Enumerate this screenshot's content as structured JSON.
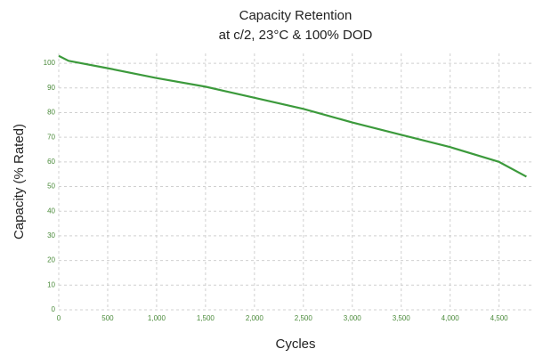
{
  "chart_data": {
    "type": "line",
    "title": "Capacity Retention",
    "subtitle": "at c/2, 23°C & 100% DOD",
    "x_label": "Cycles",
    "y_label": "Capacity (% Rated)",
    "x": [
      0,
      100,
      500,
      1000,
      1500,
      2000,
      2500,
      3000,
      3500,
      4000,
      4500,
      4780
    ],
    "series": [
      {
        "name": "Capacity",
        "color": "#3c9a3c",
        "values": [
          103,
          101,
          98,
          94,
          90.5,
          86,
          81.5,
          76,
          71,
          66,
          60,
          54
        ]
      }
    ],
    "xlim": [
      0,
      4840
    ],
    "ylim": [
      0,
      104
    ],
    "xticks": [
      0,
      500,
      {
        "value": 1000,
        "label": "1,000"
      },
      {
        "value": 1500,
        "label": "1,500"
      },
      {
        "value": 2000,
        "label": "2,000"
      },
      {
        "value": 2500,
        "label": "2,500"
      },
      {
        "value": 3000,
        "label": "3,000"
      },
      {
        "value": 3500,
        "label": "3,500"
      },
      {
        "value": 4000,
        "label": "4,000"
      },
      {
        "value": 4500,
        "label": "4,500"
      }
    ],
    "yticks": [
      0,
      10,
      20,
      30,
      40,
      50,
      60,
      70,
      80,
      90,
      100
    ],
    "grid": true
  }
}
